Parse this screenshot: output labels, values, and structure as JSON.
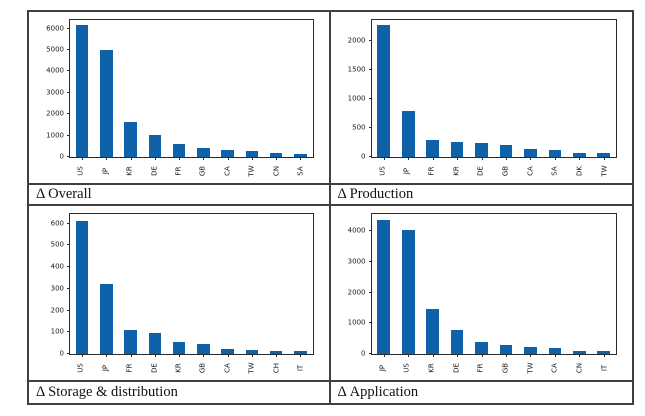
{
  "colors": {
    "bar": "#0e62a9",
    "table_border": "#3f3f3f",
    "plot_border": "#2b2b2b",
    "text": "#111111"
  },
  "chart_data": [
    {
      "type": "bar",
      "title": "Δ Overall",
      "categories": [
        "US",
        "JP",
        "KR",
        "DE",
        "FR",
        "GB",
        "CA",
        "TW",
        "CN",
        "SA"
      ],
      "values": [
        6150,
        5000,
        1650,
        1050,
        630,
        430,
        320,
        270,
        170,
        160
      ],
      "xlabel": "",
      "ylabel": "",
      "yticks": [
        0,
        1000,
        2000,
        3000,
        4000,
        5000,
        6000
      ],
      "ylim": [
        0,
        6400
      ],
      "grid": false,
      "legend": "none"
    },
    {
      "type": "bar",
      "title": "Δ Production",
      "categories": [
        "US",
        "JP",
        "FR",
        "KR",
        "DE",
        "GB",
        "CA",
        "SA",
        "DK",
        "TW"
      ],
      "values": [
        2270,
        800,
        290,
        265,
        240,
        200,
        130,
        120,
        70,
        70
      ],
      "xlabel": "",
      "ylabel": "",
      "yticks": [
        0,
        500,
        1000,
        1500,
        2000
      ],
      "ylim": [
        0,
        2360
      ],
      "grid": false,
      "legend": "none"
    },
    {
      "type": "bar",
      "title": "Δ Storage & distribution",
      "categories": [
        "US",
        "JP",
        "FR",
        "DE",
        "KR",
        "GB",
        "CA",
        "TW",
        "CH",
        "IT"
      ],
      "values": [
        615,
        322,
        110,
        95,
        57,
        47,
        25,
        17,
        16,
        12
      ],
      "xlabel": "",
      "ylabel": "",
      "yticks": [
        0,
        100,
        200,
        300,
        400,
        500,
        600
      ],
      "ylim": [
        0,
        645
      ],
      "grid": false,
      "legend": "none"
    },
    {
      "type": "bar",
      "title": "Δ Application",
      "categories": [
        "JP",
        "US",
        "KR",
        "DE",
        "FR",
        "GB",
        "TW",
        "CA",
        "CN",
        "IT"
      ],
      "values": [
        4350,
        4050,
        1480,
        790,
        390,
        300,
        230,
        180,
        110,
        100
      ],
      "xlabel": "",
      "ylabel": "",
      "yticks": [
        0,
        1000,
        2000,
        3000,
        4000
      ],
      "ylim": [
        0,
        4560
      ],
      "grid": false,
      "legend": "none"
    }
  ]
}
